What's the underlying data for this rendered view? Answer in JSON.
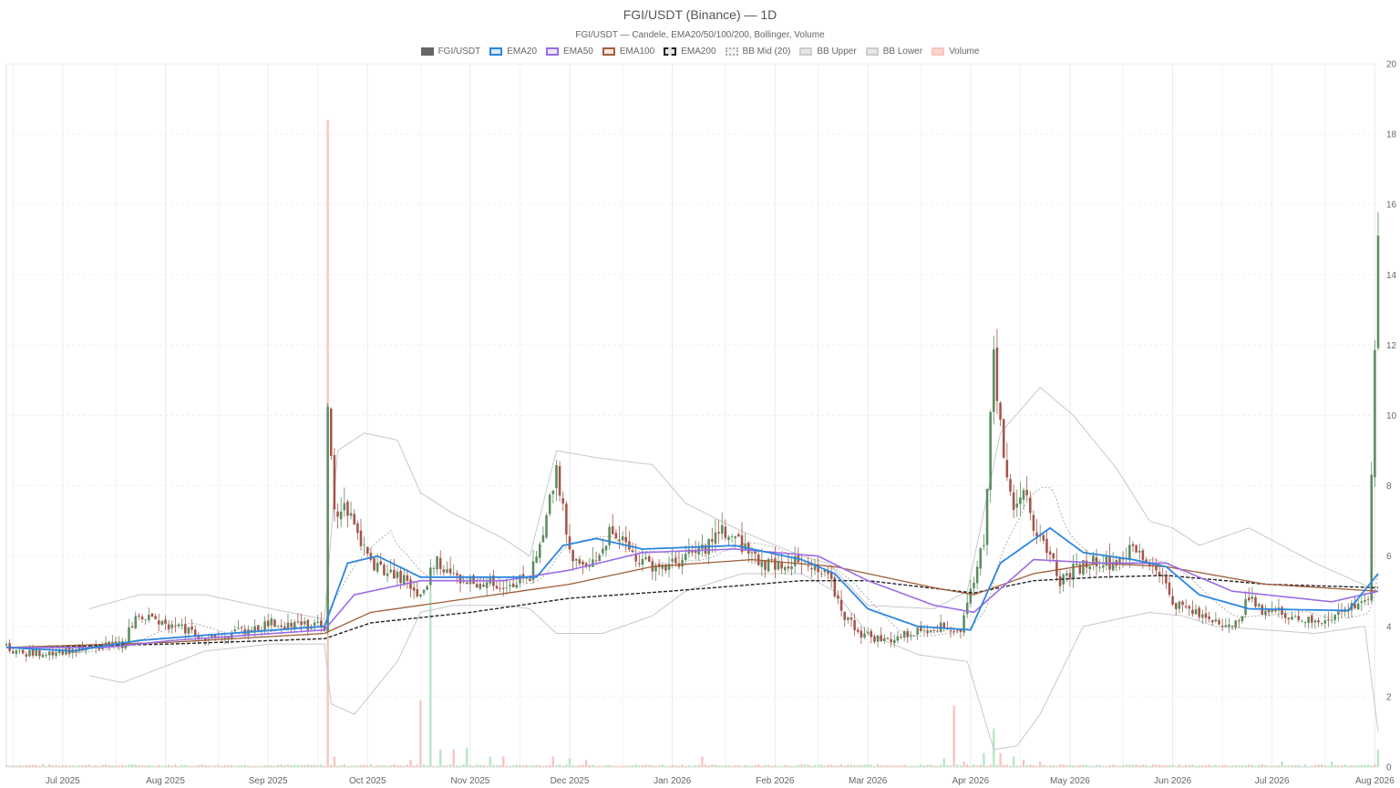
{
  "chart_data": {
    "type": "candlestick",
    "title": "FGI/USDT (Binance) — 1D",
    "subtitle": "FGI/USDT — Candele, EMA20/50/100/200, Bollinger, Volume",
    "legend": [
      {
        "name": "FGI/USDT",
        "color": "#666666",
        "fill": "#666666",
        "style": "solid"
      },
      {
        "name": "EMA20",
        "color": "#2c86e0",
        "fill": "#dbe9f7",
        "style": "solid"
      },
      {
        "name": "EMA50",
        "color": "#9b6ce6",
        "fill": "#eee6fb",
        "style": "solid"
      },
      {
        "name": "EMA100",
        "color": "#a0603a",
        "fill": "#f1e6de",
        "style": "solid"
      },
      {
        "name": "EMA200",
        "color": "#222222",
        "fill": "#e6e6e6",
        "style": "dashed"
      },
      {
        "name": "BB Mid (20)",
        "color": "#aaaaaa",
        "fill": "#f2f2f2",
        "style": "dotted"
      },
      {
        "name": "BB Upper",
        "color": "#cccccc",
        "fill": "#e6e6e6",
        "style": "solid"
      },
      {
        "name": "BB Lower",
        "color": "#cccccc",
        "fill": "#e6e6e6",
        "style": "solid"
      },
      {
        "name": "Volume",
        "color": "#f4c7bf",
        "fill": "#f8d5cf",
        "style": "solid"
      }
    ],
    "x_ticks": [
      "Jul 2025",
      "Aug 2025",
      "Sep 2025",
      "Oct 2025",
      "Nov 2025",
      "Dec 2025",
      "Jan 2026",
      "Feb 2026",
      "Mar 2026",
      "Apr 2026",
      "May 2026",
      "Jun 2026",
      "Jul 2026",
      "Aug 2026"
    ],
    "x_tick_day_index": [
      17,
      48,
      79,
      109,
      140,
      170,
      201,
      232,
      260,
      291,
      321,
      352,
      382,
      413
    ],
    "y_ticks": [
      "0",
      "2",
      "4",
      "6",
      "8",
      "10",
      "12",
      "14",
      "16",
      "18",
      "20"
    ],
    "ylim": [
      0,
      20
    ],
    "num_days": 415,
    "colors": {
      "up": "#5b8c5f",
      "down": "#a4554a",
      "vol_up": "#b9e6c9",
      "vol_down": "#f4c7bf",
      "grid": "#ebebeb"
    },
    "price_anchors": [
      [
        0,
        3.45
      ],
      [
        5,
        3.2
      ],
      [
        15,
        3.3
      ],
      [
        25,
        3.35
      ],
      [
        35,
        3.5
      ],
      [
        40,
        4.4
      ],
      [
        48,
        4.0
      ],
      [
        55,
        3.9
      ],
      [
        60,
        3.6
      ],
      [
        70,
        3.85
      ],
      [
        80,
        4.1
      ],
      [
        92,
        4.0
      ],
      [
        96,
        4.0
      ],
      [
        97,
        10.0
      ],
      [
        99,
        7.2
      ],
      [
        102,
        7.5
      ],
      [
        105,
        6.8
      ],
      [
        110,
        5.8
      ],
      [
        116,
        5.5
      ],
      [
        120,
        5.3
      ],
      [
        125,
        4.8
      ],
      [
        130,
        6.0
      ],
      [
        133,
        5.5
      ],
      [
        140,
        5.3
      ],
      [
        150,
        5.2
      ],
      [
        158,
        5.4
      ],
      [
        162,
        6.5
      ],
      [
        166,
        8.5
      ],
      [
        170,
        6.0
      ],
      [
        175,
        5.6
      ],
      [
        183,
        6.8
      ],
      [
        188,
        6.2
      ],
      [
        192,
        5.8
      ],
      [
        200,
        5.7
      ],
      [
        210,
        6.2
      ],
      [
        216,
        6.7
      ],
      [
        222,
        6.3
      ],
      [
        228,
        5.8
      ],
      [
        238,
        5.8
      ],
      [
        248,
        5.4
      ],
      [
        253,
        4.3
      ],
      [
        258,
        3.8
      ],
      [
        265,
        3.6
      ],
      [
        273,
        3.8
      ],
      [
        280,
        4.0
      ],
      [
        288,
        3.9
      ],
      [
        295,
        6.5
      ],
      [
        298,
        11.5
      ],
      [
        301,
        9.0
      ],
      [
        304,
        7.5
      ],
      [
        307,
        8.0
      ],
      [
        310,
        6.5
      ],
      [
        314,
        6.3
      ],
      [
        318,
        5.3
      ],
      [
        322,
        5.6
      ],
      [
        328,
        5.9
      ],
      [
        334,
        5.8
      ],
      [
        340,
        6.2
      ],
      [
        348,
        5.6
      ],
      [
        352,
        4.7
      ],
      [
        360,
        4.3
      ],
      [
        366,
        4.2
      ],
      [
        370,
        3.9
      ],
      [
        375,
        4.8
      ],
      [
        378,
        4.5
      ],
      [
        385,
        4.4
      ],
      [
        395,
        4.1
      ],
      [
        405,
        4.5
      ],
      [
        408,
        4.7
      ],
      [
        411,
        4.8
      ],
      [
        414,
        14.8
      ]
    ],
    "ema20_anchors": [
      [
        0,
        3.4
      ],
      [
        20,
        3.3
      ],
      [
        40,
        3.6
      ],
      [
        60,
        3.75
      ],
      [
        96,
        4.0
      ],
      [
        103,
        5.8
      ],
      [
        112,
        6.0
      ],
      [
        125,
        5.4
      ],
      [
        140,
        5.4
      ],
      [
        160,
        5.4
      ],
      [
        168,
        6.3
      ],
      [
        178,
        6.5
      ],
      [
        192,
        6.2
      ],
      [
        220,
        6.3
      ],
      [
        240,
        5.9
      ],
      [
        250,
        5.5
      ],
      [
        260,
        4.5
      ],
      [
        275,
        4.0
      ],
      [
        291,
        3.9
      ],
      [
        300,
        5.8
      ],
      [
        315,
        6.8
      ],
      [
        325,
        6.1
      ],
      [
        340,
        5.9
      ],
      [
        350,
        5.7
      ],
      [
        360,
        4.9
      ],
      [
        375,
        4.5
      ],
      [
        405,
        4.45
      ],
      [
        414,
        5.5
      ]
    ],
    "ema50_anchors": [
      [
        0,
        3.4
      ],
      [
        30,
        3.4
      ],
      [
        50,
        3.6
      ],
      [
        96,
        3.9
      ],
      [
        105,
        4.9
      ],
      [
        125,
        5.3
      ],
      [
        150,
        5.3
      ],
      [
        170,
        5.6
      ],
      [
        192,
        6.1
      ],
      [
        220,
        6.2
      ],
      [
        245,
        6.0
      ],
      [
        260,
        5.3
      ],
      [
        280,
        4.6
      ],
      [
        292,
        4.4
      ],
      [
        310,
        5.9
      ],
      [
        330,
        5.8
      ],
      [
        350,
        5.8
      ],
      [
        370,
        5.0
      ],
      [
        400,
        4.7
      ],
      [
        414,
        5.0
      ]
    ],
    "ema100_anchors": [
      [
        0,
        3.4
      ],
      [
        50,
        3.55
      ],
      [
        96,
        3.8
      ],
      [
        110,
        4.4
      ],
      [
        140,
        4.8
      ],
      [
        170,
        5.2
      ],
      [
        195,
        5.7
      ],
      [
        225,
        5.9
      ],
      [
        250,
        5.7
      ],
      [
        280,
        5.1
      ],
      [
        292,
        4.9
      ],
      [
        310,
        5.5
      ],
      [
        330,
        5.8
      ],
      [
        350,
        5.7
      ],
      [
        380,
        5.2
      ],
      [
        414,
        5.0
      ]
    ],
    "ema200_anchors": [
      [
        0,
        3.4
      ],
      [
        50,
        3.5
      ],
      [
        96,
        3.65
      ],
      [
        110,
        4.1
      ],
      [
        140,
        4.4
      ],
      [
        170,
        4.8
      ],
      [
        200,
        5.0
      ],
      [
        240,
        5.3
      ],
      [
        260,
        5.3
      ],
      [
        292,
        4.95
      ],
      [
        310,
        5.3
      ],
      [
        330,
        5.4
      ],
      [
        350,
        5.45
      ],
      [
        380,
        5.2
      ],
      [
        414,
        5.1
      ]
    ],
    "bb_upper_anchors": [
      [
        25,
        4.5
      ],
      [
        40,
        4.9
      ],
      [
        60,
        4.9
      ],
      [
        80,
        4.5
      ],
      [
        96,
        4.2
      ],
      [
        100,
        9.0
      ],
      [
        108,
        9.5
      ],
      [
        118,
        9.3
      ],
      [
        125,
        7.8
      ],
      [
        135,
        7.2
      ],
      [
        150,
        6.5
      ],
      [
        158,
        6.0
      ],
      [
        166,
        9.0
      ],
      [
        178,
        8.8
      ],
      [
        195,
        8.6
      ],
      [
        205,
        7.5
      ],
      [
        222,
        6.7
      ],
      [
        240,
        6.0
      ],
      [
        248,
        5.8
      ],
      [
        260,
        4.6
      ],
      [
        280,
        4.5
      ],
      [
        290,
        5.0
      ],
      [
        300,
        9.5
      ],
      [
        312,
        10.8
      ],
      [
        322,
        10.0
      ],
      [
        335,
        8.5
      ],
      [
        345,
        7.0
      ],
      [
        352,
        6.8
      ],
      [
        360,
        6.3
      ],
      [
        375,
        6.8
      ],
      [
        395,
        5.8
      ],
      [
        414,
        5.0
      ]
    ],
    "bb_lower_anchors": [
      [
        25,
        2.6
      ],
      [
        35,
        2.4
      ],
      [
        60,
        3.3
      ],
      [
        80,
        3.5
      ],
      [
        96,
        3.5
      ],
      [
        98,
        1.8
      ],
      [
        105,
        1.5
      ],
      [
        118,
        3.0
      ],
      [
        125,
        4.4
      ],
      [
        135,
        4.6
      ],
      [
        150,
        4.6
      ],
      [
        158,
        4.5
      ],
      [
        166,
        3.8
      ],
      [
        180,
        3.8
      ],
      [
        195,
        4.3
      ],
      [
        205,
        5.0
      ],
      [
        222,
        5.5
      ],
      [
        240,
        5.5
      ],
      [
        250,
        5.0
      ],
      [
        260,
        3.8
      ],
      [
        275,
        3.2
      ],
      [
        290,
        3.0
      ],
      [
        298,
        0.5
      ],
      [
        305,
        0.6
      ],
      [
        312,
        1.5
      ],
      [
        325,
        4.0
      ],
      [
        335,
        4.2
      ],
      [
        345,
        4.4
      ],
      [
        355,
        4.3
      ],
      [
        365,
        4.0
      ],
      [
        395,
        3.8
      ],
      [
        410,
        4.0
      ],
      [
        414,
        1.0
      ]
    ],
    "volume_spikes": [
      [
        97,
        18.4,
        0
      ],
      [
        99,
        0.3,
        0
      ],
      [
        122,
        0.2,
        0
      ],
      [
        125,
        1.9,
        0
      ],
      [
        128,
        5.0,
        1
      ],
      [
        131,
        0.5,
        1
      ],
      [
        135,
        0.5,
        0
      ],
      [
        139,
        0.55,
        1
      ],
      [
        146,
        0.3,
        1
      ],
      [
        150,
        0.3,
        0
      ],
      [
        165,
        0.3,
        0
      ],
      [
        170,
        0.25,
        1
      ],
      [
        175,
        0.2,
        0
      ],
      [
        210,
        0.3,
        0
      ],
      [
        283,
        0.25,
        1
      ],
      [
        286,
        1.75,
        0
      ],
      [
        289,
        0.15,
        0
      ],
      [
        295,
        0.4,
        1
      ],
      [
        298,
        1.1,
        1
      ],
      [
        300,
        0.4,
        0
      ],
      [
        304,
        0.3,
        1
      ],
      [
        307,
        0.2,
        0
      ],
      [
        312,
        0.15,
        0
      ],
      [
        385,
        0.15,
        1
      ],
      [
        400,
        0.15,
        1
      ],
      [
        414,
        0.5,
        1
      ]
    ]
  }
}
